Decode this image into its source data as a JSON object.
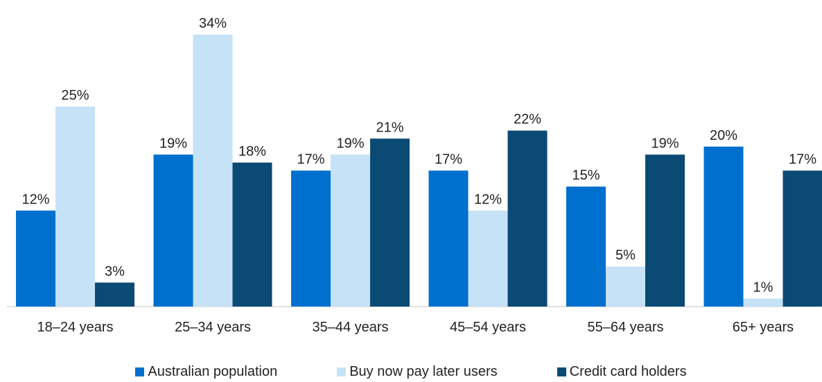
{
  "chart_data": {
    "type": "bar",
    "categories": [
      "18–24 years",
      "25–34 years",
      "35–44 years",
      "45–54 years",
      "55–64 years",
      "65+ years"
    ],
    "series": [
      {
        "name": "Australian population",
        "color": "#0070cf",
        "values": [
          12,
          19,
          17,
          17,
          15,
          20
        ]
      },
      {
        "name": "Buy now pay later users",
        "color": "#c5e2f7",
        "values": [
          25,
          34,
          19,
          12,
          5,
          1
        ]
      },
      {
        "name": "Credit card holders",
        "color": "#0b4a75",
        "values": [
          3,
          18,
          21,
          22,
          19,
          17
        ]
      }
    ],
    "value_suffix": "%",
    "ylim": [
      0,
      34
    ],
    "grid": false,
    "legend_position": "bottom"
  }
}
